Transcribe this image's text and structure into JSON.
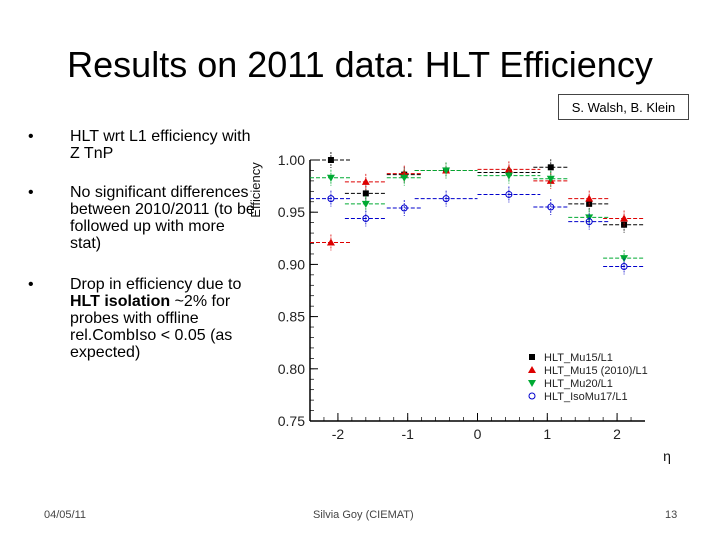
{
  "slide": {
    "title": "Results on 2011 data: HLT Efficiency",
    "authors": "S. Walsh, B. Klein",
    "bullets": [
      {
        "text": "HLT wrt L1 efficiency with Z TnP"
      },
      {
        "text": "No significant differences between 2010/2011 (to be followed up with more stat)"
      },
      {
        "pre": "Drop in efficiency due to ",
        "bold": "HLT isolation",
        "post": " ~2% for probes with offline rel.CombIso < 0.05 (as expected)"
      }
    ],
    "footer": {
      "date": "04/05/11",
      "author": "Silvia Goy (CIEMAT)",
      "page": "13"
    }
  },
  "chart_data": {
    "type": "scatter",
    "xlabel": "η",
    "ylabel": "Efficiency",
    "xlim": [
      -2.4,
      2.4
    ],
    "ylim": [
      0.75,
      1.0
    ],
    "xticks": [
      "-2",
      "-1",
      "0",
      "1",
      "2"
    ],
    "yticks": [
      "0.75",
      "0.80",
      "0.85",
      "0.90",
      "0.95",
      "1.00"
    ],
    "legend_position": "bottom-right",
    "series": [
      {
        "name": "HLT_Mu15/L1",
        "marker": "square",
        "color": "#000000",
        "x": [
          -2.1,
          -1.6,
          -1.05,
          -0.45,
          0.45,
          1.05,
          1.6,
          2.1
        ],
        "xerr": [
          0.3,
          0.3,
          0.25,
          0.45,
          0.45,
          0.25,
          0.3,
          0.3
        ],
        "y": [
          1.0,
          0.968,
          0.986,
          0.99,
          0.988,
          0.993,
          0.958,
          0.938
        ]
      },
      {
        "name": "HLT_Mu15 (2010)/L1",
        "marker": "triangle",
        "color": "#dd0000",
        "x": [
          -2.1,
          -1.6,
          -1.05,
          -0.45,
          0.45,
          1.05,
          1.6,
          2.1
        ],
        "xerr": [
          0.3,
          0.3,
          0.25,
          0.45,
          0.45,
          0.25,
          0.3,
          0.3
        ],
        "y": [
          0.921,
          0.979,
          0.987,
          0.99,
          0.991,
          0.98,
          0.963,
          0.944
        ]
      },
      {
        "name": "HLT_Mu20/L1",
        "marker": "triangle-down",
        "color": "#00aa33",
        "x": [
          -2.1,
          -1.6,
          -1.05,
          -0.45,
          0.45,
          1.05,
          1.6,
          2.1
        ],
        "xerr": [
          0.3,
          0.3,
          0.25,
          0.45,
          0.45,
          0.25,
          0.3,
          0.3
        ],
        "y": [
          0.983,
          0.958,
          0.983,
          0.99,
          0.985,
          0.982,
          0.945,
          0.906
        ]
      },
      {
        "name": "HLT_IsoMu17/L1",
        "marker": "circle-open",
        "color": "#0000cc",
        "x": [
          -2.1,
          -1.6,
          -1.05,
          -0.45,
          0.45,
          1.05,
          1.6,
          2.1
        ],
        "xerr": [
          0.3,
          0.3,
          0.25,
          0.45,
          0.45,
          0.25,
          0.3,
          0.3
        ],
        "y": [
          0.963,
          0.944,
          0.954,
          0.963,
          0.967,
          0.955,
          0.941,
          0.898
        ]
      }
    ]
  }
}
